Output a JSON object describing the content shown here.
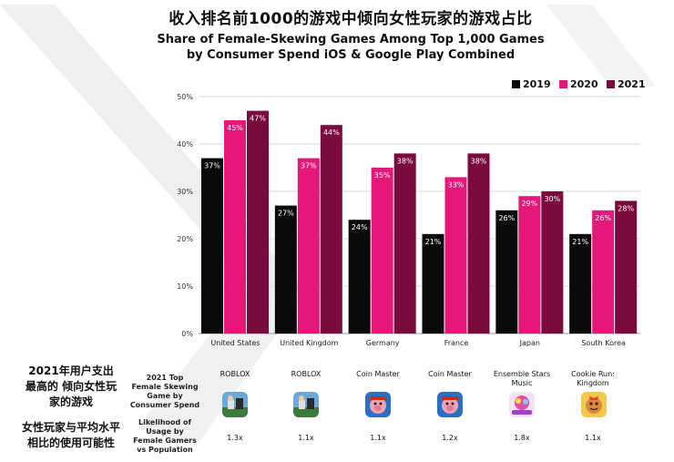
{
  "title_cn": "收入排名前1000的游戏中倾向女性玩家的游戏占比",
  "title_en_line1": "Share of Female-Skewing Games Among Top 1,000 Games",
  "title_en_line2": "by Consumer Spend iOS & Google Play Combined",
  "chart_data": {
    "type": "bar",
    "title": "Share of Female-Skewing Games Among Top 1,000 Games by Consumer Spend iOS & Google Play Combined",
    "categories": [
      "United States",
      "United Kingdom",
      "Germany",
      "France",
      "Japan",
      "South Korea"
    ],
    "series": [
      {
        "name": "2019",
        "color": "#0a0a0a",
        "values": [
          37,
          27,
          24,
          21,
          26,
          21
        ]
      },
      {
        "name": "2020",
        "color": "#e5187a",
        "values": [
          45,
          37,
          35,
          33,
          29,
          26
        ]
      },
      {
        "name": "2021",
        "color": "#7a0a3e",
        "values": [
          47,
          44,
          38,
          38,
          30,
          28
        ]
      }
    ],
    "data_labels": [
      [
        "37%",
        "45%",
        "47%"
      ],
      [
        "27%",
        "37%",
        "44%"
      ],
      [
        "24%",
        "35%",
        "38%"
      ],
      [
        "21%",
        "33%",
        "38%"
      ],
      [
        "26%",
        "29%",
        "30%"
      ],
      [
        "21%",
        "26%",
        "28%"
      ]
    ],
    "ylim": [
      0,
      50
    ],
    "yticks": [
      "0%",
      "10%",
      "20%",
      "30%",
      "40%",
      "50%"
    ],
    "legend_position": "top-right",
    "xlabel": "",
    "ylabel": ""
  },
  "left_labels": {
    "top_game_cn": "2021年用户支出\n最高的 倾向女性玩\n家的游戏",
    "likelihood_cn": "女性玩家与平均水平\n相比的使用可能性",
    "top_game_en": "2021 Top\nFemale Skewing\nGame by\nConsumer Spend",
    "likelihood_en": "Likelihood of\nUsage by\nFemale Gamers\nvs Population"
  },
  "games": [
    {
      "country": "United States",
      "name": "ROBLOX",
      "icon": "roblox-icon",
      "multiplier": "1.3x"
    },
    {
      "country": "United Kingdom",
      "name": "ROBLOX",
      "icon": "roblox-icon",
      "multiplier": "1.1x"
    },
    {
      "country": "Germany",
      "name": "Coin Master",
      "icon": "coin-master-icon",
      "multiplier": "1.1x"
    },
    {
      "country": "France",
      "name": "Coin Master",
      "icon": "coin-master-icon",
      "multiplier": "1.2x"
    },
    {
      "country": "Japan",
      "name": "Ensemble Stars\nMusic",
      "icon": "ensemble-stars-icon",
      "multiplier": "1.8x"
    },
    {
      "country": "South Korea",
      "name": "Cookie Run:\nKingdom",
      "icon": "cookie-run-icon",
      "multiplier": "1.1x"
    }
  ]
}
